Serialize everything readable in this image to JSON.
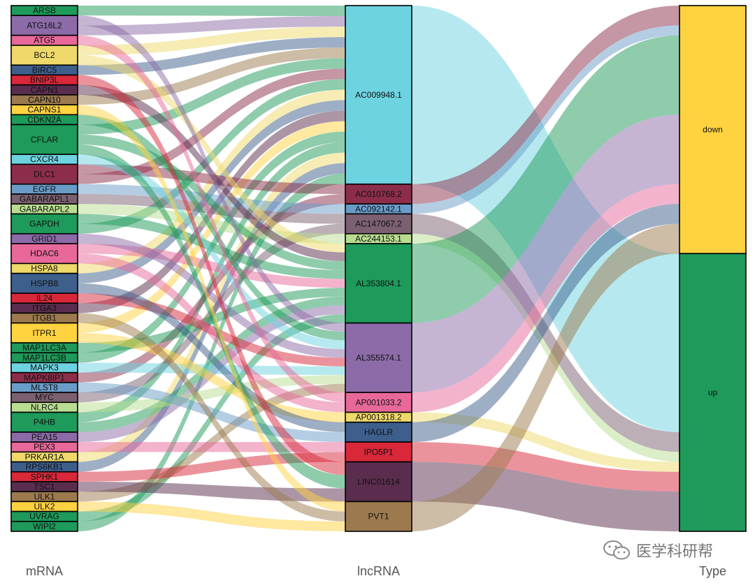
{
  "chart_data": {
    "type": "sankey",
    "axes": [
      "mRNA",
      "lncRNA",
      "Type"
    ],
    "nodes": {
      "mRNA": [
        {
          "name": "ARSB",
          "color": "#1E9A5A"
        },
        {
          "name": "ATG16L2",
          "color": "#8C6BA8"
        },
        {
          "name": "ATG5",
          "color": "#E8689A"
        },
        {
          "name": "BCL2",
          "color": "#EED96A"
        },
        {
          "name": "BIRC5",
          "color": "#3E5F8C"
        },
        {
          "name": "BNIP3L",
          "color": "#D8283A"
        },
        {
          "name": "CAPN1",
          "color": "#5A2D4E"
        },
        {
          "name": "CAPN10",
          "color": "#9C7A4E"
        },
        {
          "name": "CAPNS1",
          "color": "#FFD23F"
        },
        {
          "name": "CDKN2A",
          "color": "#1E9A5A"
        },
        {
          "name": "CFLAR",
          "color": "#1E9A5A"
        },
        {
          "name": "CXCR4",
          "color": "#6ED3E0"
        },
        {
          "name": "DLC1",
          "color": "#8C2E4A"
        },
        {
          "name": "EGFR",
          "color": "#6A9CC8"
        },
        {
          "name": "GABARAPL1",
          "color": "#7A6070"
        },
        {
          "name": "GABARAPL2",
          "color": "#B8DD90"
        },
        {
          "name": "GAPDH",
          "color": "#1E9A5A"
        },
        {
          "name": "GRID1",
          "color": "#8C6BA8"
        },
        {
          "name": "HDAC6",
          "color": "#E8689A"
        },
        {
          "name": "HSPA8",
          "color": "#EED96A"
        },
        {
          "name": "HSPB8",
          "color": "#3E5F8C"
        },
        {
          "name": "IL24",
          "color": "#D8283A"
        },
        {
          "name": "ITGA3",
          "color": "#5A2D4E"
        },
        {
          "name": "ITGB1",
          "color": "#9C7A4E"
        },
        {
          "name": "ITPR1",
          "color": "#FFD23F"
        },
        {
          "name": "MAP1LC3A",
          "color": "#1E9A5A"
        },
        {
          "name": "MAP1LC3B",
          "color": "#1E9A5A"
        },
        {
          "name": "MAPK3",
          "color": "#6ED3E0"
        },
        {
          "name": "MAPK8IP1",
          "color": "#8C2E4A"
        },
        {
          "name": "MLST8",
          "color": "#6A9CC8"
        },
        {
          "name": "MYC",
          "color": "#7A6070"
        },
        {
          "name": "NLRC4",
          "color": "#B8DD90"
        },
        {
          "name": "P4HB",
          "color": "#1E9A5A"
        },
        {
          "name": "PEA15",
          "color": "#8C6BA8"
        },
        {
          "name": "PEX3",
          "color": "#E8689A"
        },
        {
          "name": "PRKAR1A",
          "color": "#EED96A"
        },
        {
          "name": "RPS6KB1",
          "color": "#3E5F8C"
        },
        {
          "name": "SPHK1",
          "color": "#D8283A"
        },
        {
          "name": "TSC1",
          "color": "#5A2D4E"
        },
        {
          "name": "ULK1",
          "color": "#9C7A4E"
        },
        {
          "name": "ULK2",
          "color": "#FFD23F"
        },
        {
          "name": "UVRAG",
          "color": "#1E9A5A"
        },
        {
          "name": "WIPI2",
          "color": "#1E9A5A"
        }
      ],
      "lncRNA": [
        {
          "name": "AC009948.1",
          "color": "#6ED3E0"
        },
        {
          "name": "AC010768.2",
          "color": "#8C2E4A"
        },
        {
          "name": "AC092142.1",
          "color": "#6A9CC8"
        },
        {
          "name": "AC147067.2",
          "color": "#7A6070"
        },
        {
          "name": "AC244153.1",
          "color": "#B8DD90"
        },
        {
          "name": "AL353804.1",
          "color": "#1E9A5A"
        },
        {
          "name": "AL355574.1",
          "color": "#8C6BA8"
        },
        {
          "name": "AP001033.2",
          "color": "#E8689A"
        },
        {
          "name": "AP001318.2",
          "color": "#EED96A"
        },
        {
          "name": "HAGLR",
          "color": "#3E5F8C"
        },
        {
          "name": "IPO5P1",
          "color": "#D8283A"
        },
        {
          "name": "LINC01614",
          "color": "#5A2D4E"
        },
        {
          "name": "PVT1",
          "color": "#9C7A4E"
        }
      ],
      "Type": [
        {
          "name": "down",
          "color": "#FFD23F"
        },
        {
          "name": "up",
          "color": "#1E9A5A"
        }
      ]
    },
    "lnc_values": [
      18,
      2,
      1,
      2,
      1,
      8,
      7,
      2,
      1,
      2,
      2,
      4,
      3
    ],
    "lnc_type": [
      "up",
      "down",
      "down",
      "up",
      "up",
      "down",
      "down",
      "down",
      "up",
      "down",
      "up",
      "up",
      "down"
    ],
    "mrna_values": [
      1,
      2,
      1,
      2,
      1,
      1,
      1,
      1,
      1,
      1,
      3,
      1,
      2,
      1,
      1,
      1,
      2,
      1,
      2,
      1,
      2,
      1,
      1,
      1,
      2,
      1,
      1,
      1,
      1,
      1,
      1,
      1,
      2,
      1,
      1,
      1,
      1,
      1,
      1,
      1,
      1,
      1,
      1
    ],
    "mrna_links": [
      [
        "AC009948.1"
      ],
      [
        "AL355574.1",
        "AC009948.1"
      ],
      [
        "AP001033.2"
      ],
      [
        "AC009948.1",
        "AL353804.1"
      ],
      [
        "AC009948.1"
      ],
      [
        "LINC01614"
      ],
      [
        "AL353804.1"
      ],
      [
        "AC009948.1"
      ],
      [
        "PVT1"
      ],
      [
        "AL355574.1"
      ],
      [
        "AC009948.1",
        "AL353804.1",
        "LINC01614"
      ],
      [
        "AL355574.1"
      ],
      [
        "AC010768.2",
        "AC009948.1"
      ],
      [
        "AC092142.1"
      ],
      [
        "AC147067.2"
      ],
      [
        "AC244153.1"
      ],
      [
        "AL353804.1",
        "AC009948.1"
      ],
      [
        "AL355574.1"
      ],
      [
        "AL353804.1",
        "AP001033.2"
      ],
      [
        "AC009948.1"
      ],
      [
        "AC009948.1",
        "HAGLR"
      ],
      [
        "AL355574.1"
      ],
      [
        "AC009948.1"
      ],
      [
        "PVT1"
      ],
      [
        "AC009948.1",
        "AP001318.2"
      ],
      [
        "AL353804.1"
      ],
      [
        "AC009948.1"
      ],
      [
        "AL355574.1"
      ],
      [
        "AC010768.2"
      ],
      [
        "HAGLR"
      ],
      [
        "AC147067.2"
      ],
      [
        "AL355574.1"
      ],
      [
        "AC009948.1",
        "AL353804.1"
      ],
      [
        "AL353804.1"
      ],
      [
        "IPO5P1"
      ],
      [
        "AC009948.1"
      ],
      [
        "AC009948.1"
      ],
      [
        "IPO5P1"
      ],
      [
        "LINC01614"
      ],
      [
        "AL355574.1"
      ],
      [
        "PVT1"
      ],
      [
        "AL353804.1"
      ],
      [
        "AC009948.1"
      ]
    ]
  },
  "watermark": {
    "text": "医学科研帮",
    "icon": "wechat-icon"
  }
}
